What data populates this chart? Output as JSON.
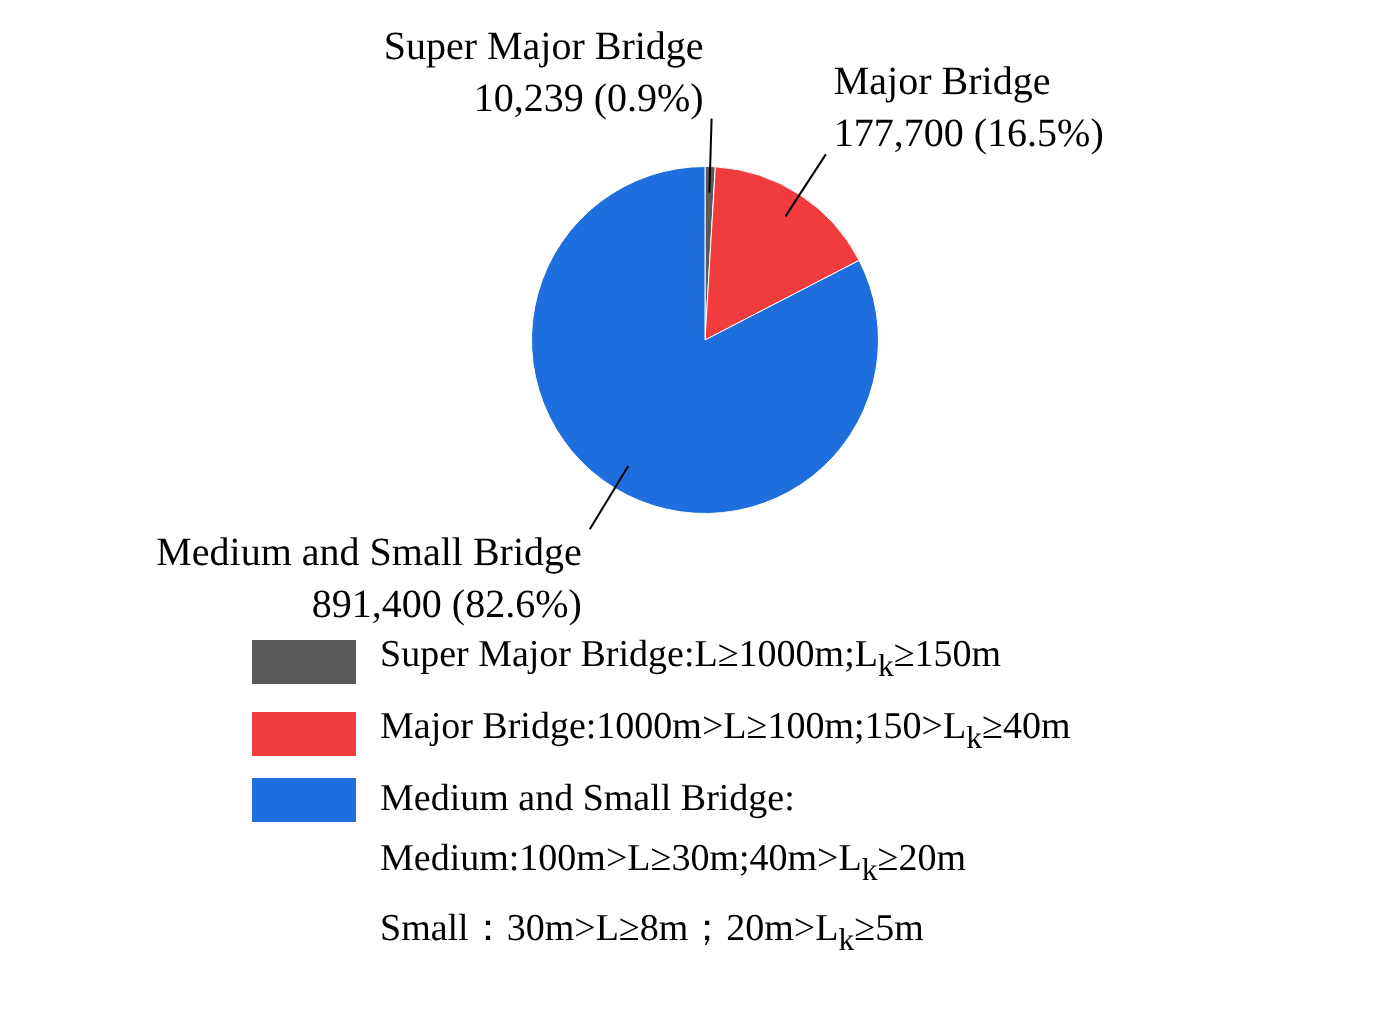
{
  "chart_data": {
    "type": "pie",
    "categories": [
      "Super Major Bridge",
      "Major Bridge",
      "Medium and Small Bridge"
    ],
    "values": [
      10239,
      177700,
      891400
    ],
    "value_labels": [
      "10,239 (0.9%)",
      "177,700 (16.5%)",
      "891,400 (82.6%)"
    ],
    "colors": [
      "#595959",
      "#f03c3c",
      "#1e6ede"
    ],
    "annotations": [
      "Super Major Bridge:L≥1000m;L$_{k}$≥150m",
      "Major Bridge:1000m>L≥100m;150>L$_{k}$≥40m",
      "Medium and Small Bridge:",
      "Medium:100m>L≥30m;40m>L$_{k}$≥20m",
      "Small：30m>L≥8m；20m>L$_{k}$≥5m"
    ]
  }
}
